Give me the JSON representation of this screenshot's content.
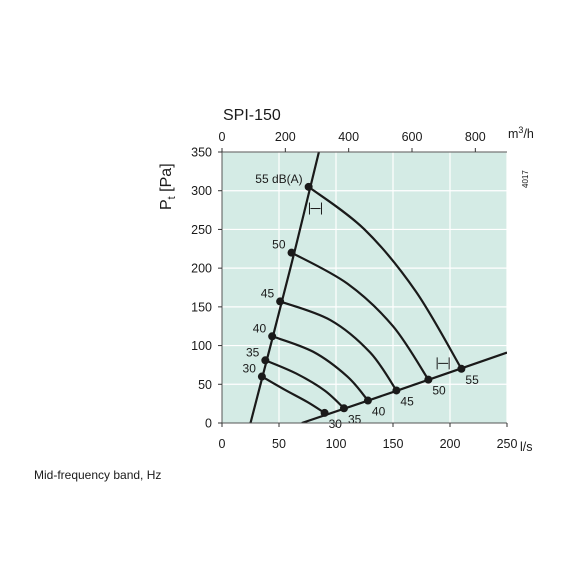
{
  "chart_data": {
    "type": "line",
    "title": "SPI-150",
    "code": "4017",
    "ylabel": "Pt [Pa]",
    "ylabel_main": "P",
    "ylabel_sub": "t",
    "ylabel_rest": " [Pa]",
    "xlabel": "l/s",
    "x2label": "m³/h",
    "x2label_base": "m",
    "x2label_sup": "3",
    "x2label_rest": "/h",
    "xlim": [
      0,
      250
    ],
    "ylim": [
      0,
      350
    ],
    "x_ticks": [
      0,
      50,
      100,
      150,
      200,
      250
    ],
    "y_ticks": [
      0,
      50,
      100,
      150,
      200,
      250,
      300,
      350
    ],
    "x2_ticks": [
      0,
      200,
      400,
      600,
      800
    ],
    "grid": true,
    "background_color": "#d4ebe5",
    "grid_color": "#ffffff",
    "line_color": "#1a1a1a",
    "system_curves": [
      {
        "name": "upper",
        "points": [
          [
            25,
            0
          ],
          [
            60,
            200
          ],
          [
            85,
            350
          ]
        ]
      },
      {
        "name": "lower",
        "points": [
          [
            70,
            0
          ],
          [
            150,
            40
          ],
          [
            250,
            91
          ]
        ]
      }
    ],
    "sound_curves": [
      {
        "label": "30",
        "points": [
          [
            35,
            60
          ],
          [
            55,
            43
          ],
          [
            75,
            27
          ],
          [
            90,
            13
          ]
        ]
      },
      {
        "label": "35",
        "points": [
          [
            38,
            81
          ],
          [
            65,
            64
          ],
          [
            90,
            42
          ],
          [
            107,
            19
          ]
        ]
      },
      {
        "label": "40",
        "points": [
          [
            44,
            112
          ],
          [
            80,
            92
          ],
          [
            110,
            60
          ],
          [
            128,
            29
          ]
        ]
      },
      {
        "label": "45",
        "points": [
          [
            51,
            157
          ],
          [
            95,
            133
          ],
          [
            130,
            91
          ],
          [
            153,
            42
          ]
        ]
      },
      {
        "label": "50",
        "points": [
          [
            61,
            220
          ],
          [
            110,
            180
          ],
          [
            150,
            125
          ],
          [
            181,
            56
          ]
        ]
      },
      {
        "label": "55 dB(A)",
        "points": [
          [
            76,
            305
          ],
          [
            125,
            250
          ],
          [
            170,
            170
          ],
          [
            210,
            70
          ]
        ]
      }
    ],
    "markers": [
      {
        "x": 35,
        "y": 60
      },
      {
        "x": 38,
        "y": 81
      },
      {
        "x": 44,
        "y": 112
      },
      {
        "x": 51,
        "y": 157
      },
      {
        "x": 61,
        "y": 220
      },
      {
        "x": 76,
        "y": 305
      },
      {
        "x": 90,
        "y": 13
      },
      {
        "x": 107,
        "y": 19
      },
      {
        "x": 128,
        "y": 29
      },
      {
        "x": 153,
        "y": 42
      },
      {
        "x": 181,
        "y": 56
      },
      {
        "x": 210,
        "y": 70
      }
    ],
    "left_labels": [
      "30",
      "35",
      "40",
      "45",
      "50",
      "55 dB(A)"
    ],
    "right_labels": [
      "30",
      "35",
      "40",
      "45",
      "50",
      "55"
    ]
  },
  "caption": "Mid-frequency band, Hz"
}
